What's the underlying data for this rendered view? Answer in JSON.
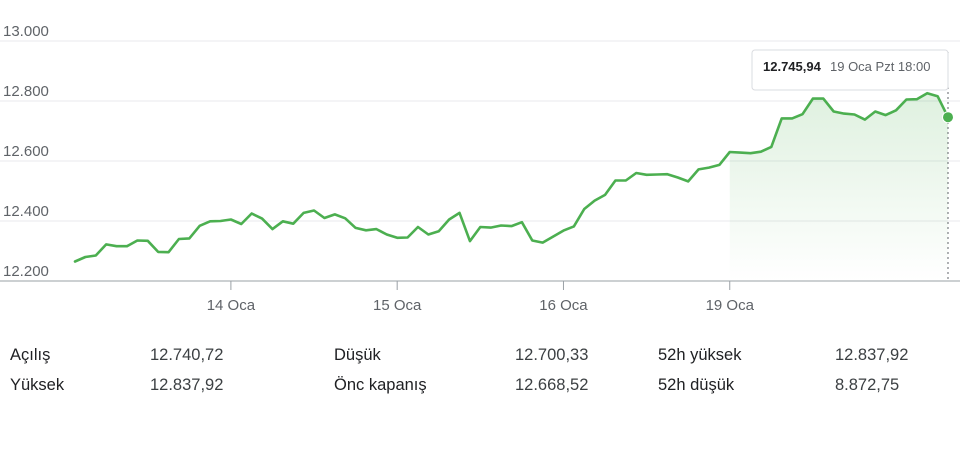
{
  "chart_data": {
    "type": "line",
    "ylim": [
      12200,
      13000
    ],
    "y_ticks": [
      "13.000",
      "12.800",
      "12.600",
      "12.400",
      "12.200"
    ],
    "y_tick_values": [
      13000,
      12800,
      12600,
      12400,
      12200
    ],
    "x_ticks": [
      {
        "label": "14 Oca",
        "index": 15
      },
      {
        "label": "15 Oca",
        "index": 31
      },
      {
        "label": "16 Oca",
        "index": 47
      },
      {
        "label": "19 Oca",
        "index": 63
      }
    ],
    "series": [
      {
        "values": [
          12265,
          12280,
          12285,
          12322,
          12316,
          12316,
          12335,
          12334,
          12297,
          12296,
          12340,
          12342,
          12384,
          12399,
          12400,
          12405,
          12390,
          12425,
          12408,
          12373,
          12399,
          12391,
          12427,
          12435,
          12410,
          12422,
          12409,
          12377,
          12369,
          12373,
          12355,
          12344,
          12345,
          12380,
          12355,
          12366,
          12405,
          12427,
          12333,
          12380,
          12378,
          12385,
          12383,
          12396,
          12335,
          12328,
          12348,
          12368,
          12382,
          12440,
          12468,
          12487,
          12535,
          12535,
          12560,
          12554,
          12555,
          12556,
          12545,
          12532,
          12572,
          12578,
          12587,
          12630,
          12628,
          12626,
          12631,
          12647,
          12742,
          12742,
          12756,
          12808,
          12808,
          12765,
          12758,
          12755,
          12738,
          12765,
          12753,
          12769,
          12805,
          12806,
          12826,
          12816,
          12745.94
        ]
      }
    ],
    "tooltip": {
      "value": "12.745,94",
      "date": "19 Oca Pzt 18:00"
    },
    "line_color": "#4caf50"
  },
  "stats": {
    "open": {
      "label": "Açılış",
      "value": "12.740,72"
    },
    "high": {
      "label": "Yüksek",
      "value": "12.837,92"
    },
    "low": {
      "label": "Düşük",
      "value": "12.700,33"
    },
    "prev_close": {
      "label": "Önc kapanış",
      "value": "12.668,52"
    },
    "high_52w": {
      "label": "52h yüksek",
      "value": "12.837,92"
    },
    "low_52w": {
      "label": "52h düşük",
      "value": "8.872,75"
    }
  }
}
